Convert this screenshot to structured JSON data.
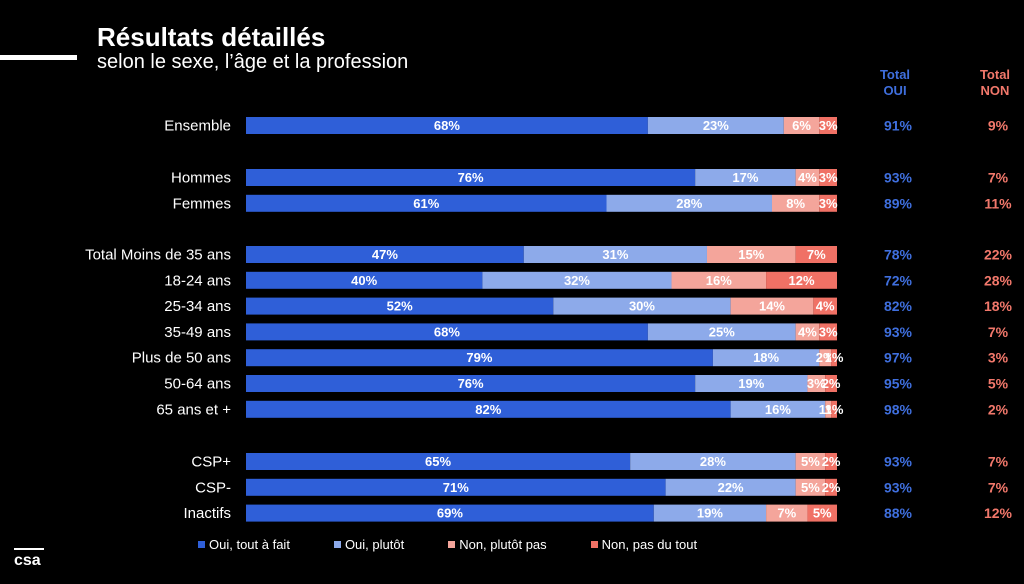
{
  "header": {
    "title": "Résultats détaillés",
    "subtitle": "selon le sexe, l’âge et la profession"
  },
  "columns": {
    "total_oui": "Total OUI",
    "total_non": "Total NON"
  },
  "logo": {
    "icon": "csa-logo"
  },
  "colors": {
    "oui_tout_a_fait": "#2f5fd8",
    "oui_plutot": "#8daaea",
    "non_plutot_pas": "#f4a59b",
    "non_pas_du_tout": "#f07165",
    "total_oui_text": "#3f6fde",
    "total_non_text": "#f2786b"
  },
  "chart_data": {
    "type": "bar",
    "orientation": "horizontal",
    "stacked": true,
    "legend_position": "bottom",
    "categories": [
      "Ensemble",
      "Hommes",
      "Femmes",
      "Total Moins de 35 ans",
      "18-24 ans",
      "25-34 ans",
      "35-49 ans",
      "Plus de 50 ans",
      "50-64 ans",
      "65 ans et +",
      "CSP+",
      "CSP-",
      "Inactifs"
    ],
    "groups": [
      [
        0
      ],
      [
        1,
        2
      ],
      [
        3,
        4,
        5,
        6,
        7,
        8,
        9
      ],
      [
        10,
        11,
        12
      ]
    ],
    "series": [
      {
        "name": "Oui, tout à fait",
        "values": [
          68,
          76,
          61,
          47,
          40,
          52,
          68,
          79,
          76,
          82,
          65,
          71,
          69
        ]
      },
      {
        "name": "Oui, plutôt",
        "values": [
          23,
          17,
          28,
          31,
          32,
          30,
          25,
          18,
          19,
          16,
          28,
          22,
          19
        ]
      },
      {
        "name": "Non, plutôt pas",
        "values": [
          6,
          4,
          8,
          15,
          16,
          14,
          4,
          2,
          3,
          1,
          5,
          5,
          7
        ]
      },
      {
        "name": "Non, pas du tout",
        "values": [
          3,
          3,
          3,
          7,
          12,
          4,
          3,
          1,
          2,
          1,
          2,
          2,
          5
        ]
      }
    ],
    "total_oui": [
      91,
      93,
      89,
      78,
      72,
      82,
      93,
      97,
      95,
      98,
      93,
      93,
      88
    ],
    "total_non": [
      9,
      7,
      11,
      22,
      28,
      18,
      7,
      3,
      5,
      2,
      7,
      7,
      12
    ],
    "label_suffix": "%",
    "xlim": [
      0,
      100
    ]
  }
}
